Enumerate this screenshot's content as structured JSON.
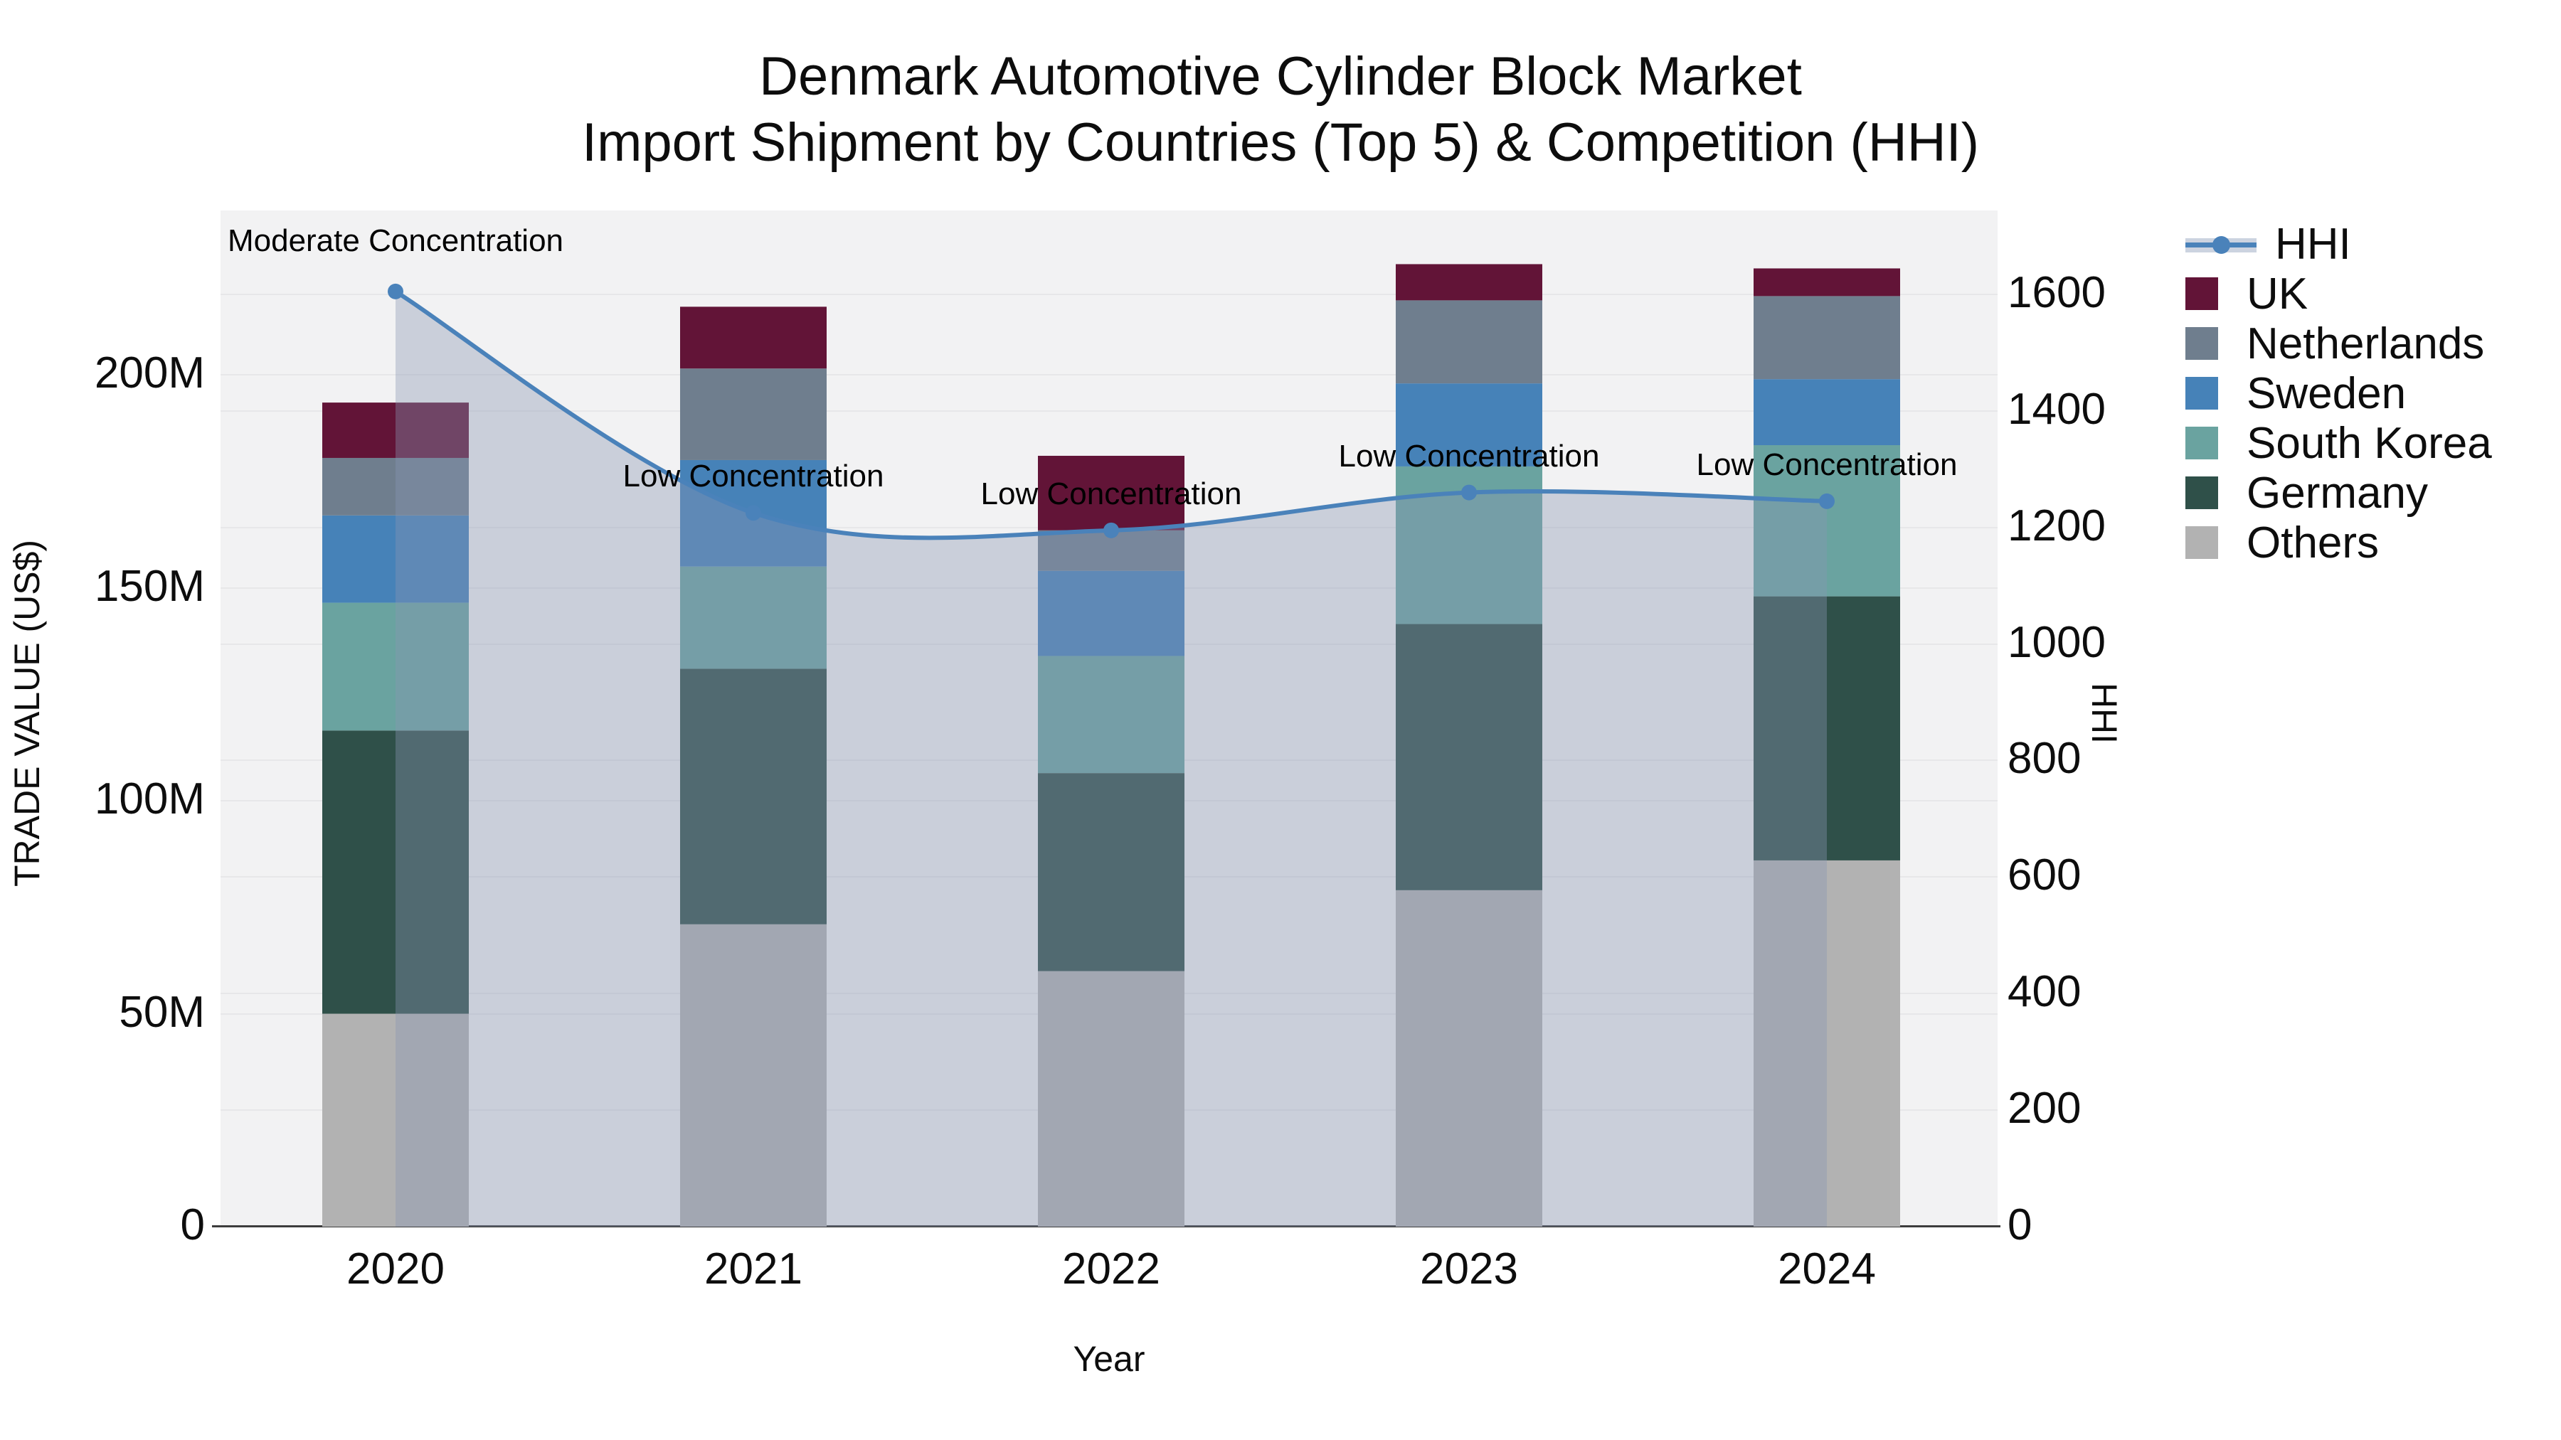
{
  "title": {
    "line1": "Denmark Automotive Cylinder Block Market",
    "line2": "Import Shipment by Countries (Top 5) & Competition (HHI)"
  },
  "axes": {
    "left": {
      "title": "TRADE VALUE (US$)",
      "ticks": [
        "0",
        "50M",
        "100M",
        "150M",
        "200M"
      ],
      "tick_values_m": [
        0,
        50,
        100,
        150,
        200
      ]
    },
    "right": {
      "title": "HHI",
      "ticks": [
        "0",
        "200",
        "400",
        "600",
        "800",
        "1000",
        "1200",
        "1400",
        "1600"
      ],
      "tick_values": [
        0,
        200,
        400,
        600,
        800,
        1000,
        1200,
        1400,
        1600
      ]
    },
    "x": {
      "title": "Year",
      "categories": [
        "2020",
        "2021",
        "2022",
        "2023",
        "2024"
      ]
    }
  },
  "legend_items": [
    {
      "label": "HHI",
      "type": "line",
      "color": "#4a82ba"
    },
    {
      "label": "UK",
      "type": "bar",
      "color": "#621437"
    },
    {
      "label": "Netherlands",
      "type": "bar",
      "color": "#6f7e8e"
    },
    {
      "label": "Sweden",
      "type": "bar",
      "color": "#4682b8"
    },
    {
      "label": "South Korea",
      "type": "bar",
      "color": "#6aa3a0"
    },
    {
      "label": "Germany",
      "type": "bar",
      "color": "#2f5049"
    },
    {
      "label": "Others",
      "type": "bar",
      "color": "#b2b2b2"
    }
  ],
  "annotations": [
    {
      "year": "2020",
      "text": "Moderate Concentration"
    },
    {
      "year": "2021",
      "text": "Low Concentration"
    },
    {
      "year": "2022",
      "text": "Low Concentration"
    },
    {
      "year": "2023",
      "text": "Low Concentration"
    },
    {
      "year": "2024",
      "text": "Low Concentration"
    }
  ],
  "colors": {
    "hhi_line": "#4a82ba",
    "hhi_area": "rgba(136,150,179,0.38)",
    "plot_background": "#f2f2f3",
    "gridline": "#e7e7e9",
    "axis_line": "#3d3d3d"
  },
  "chart_data": {
    "type": [
      "stacked-bar",
      "line-area"
    ],
    "categories": [
      "2020",
      "2021",
      "2022",
      "2023",
      "2024"
    ],
    "value_unit": "million US$",
    "series": [
      {
        "name": "Others",
        "type": "bar",
        "color": "#b2b2b2",
        "values": [
          50.0,
          71.0,
          60.0,
          79.0,
          86.0
        ]
      },
      {
        "name": "Germany",
        "type": "bar",
        "color": "#2f5049",
        "values": [
          66.5,
          60.0,
          46.5,
          62.5,
          62.0
        ]
      },
      {
        "name": "South Korea",
        "type": "bar",
        "color": "#6aa3a0",
        "values": [
          30.0,
          24.0,
          27.5,
          37.0,
          35.5
        ]
      },
      {
        "name": "Sweden",
        "type": "bar",
        "color": "#4682b8",
        "values": [
          20.5,
          25.0,
          20.0,
          19.5,
          15.5
        ]
      },
      {
        "name": "Netherlands",
        "type": "bar",
        "color": "#6f7e8e",
        "values": [
          13.5,
          21.5,
          9.5,
          19.5,
          19.5
        ]
      },
      {
        "name": "UK",
        "type": "bar",
        "color": "#621437",
        "values": [
          13.0,
          14.5,
          17.5,
          8.5,
          6.5
        ]
      }
    ],
    "hhi_series": {
      "name": "HHI",
      "type": "line",
      "axis": "right",
      "values": [
        1605,
        1225,
        1195,
        1260,
        1245
      ]
    },
    "xlabel": "Year",
    "ylabel": "TRADE VALUE (US$)",
    "y2label": "HHI",
    "ylim": [
      0,
      238.6
    ],
    "y2lim": [
      0,
      1744
    ],
    "grid": true,
    "legend_position": "right"
  }
}
